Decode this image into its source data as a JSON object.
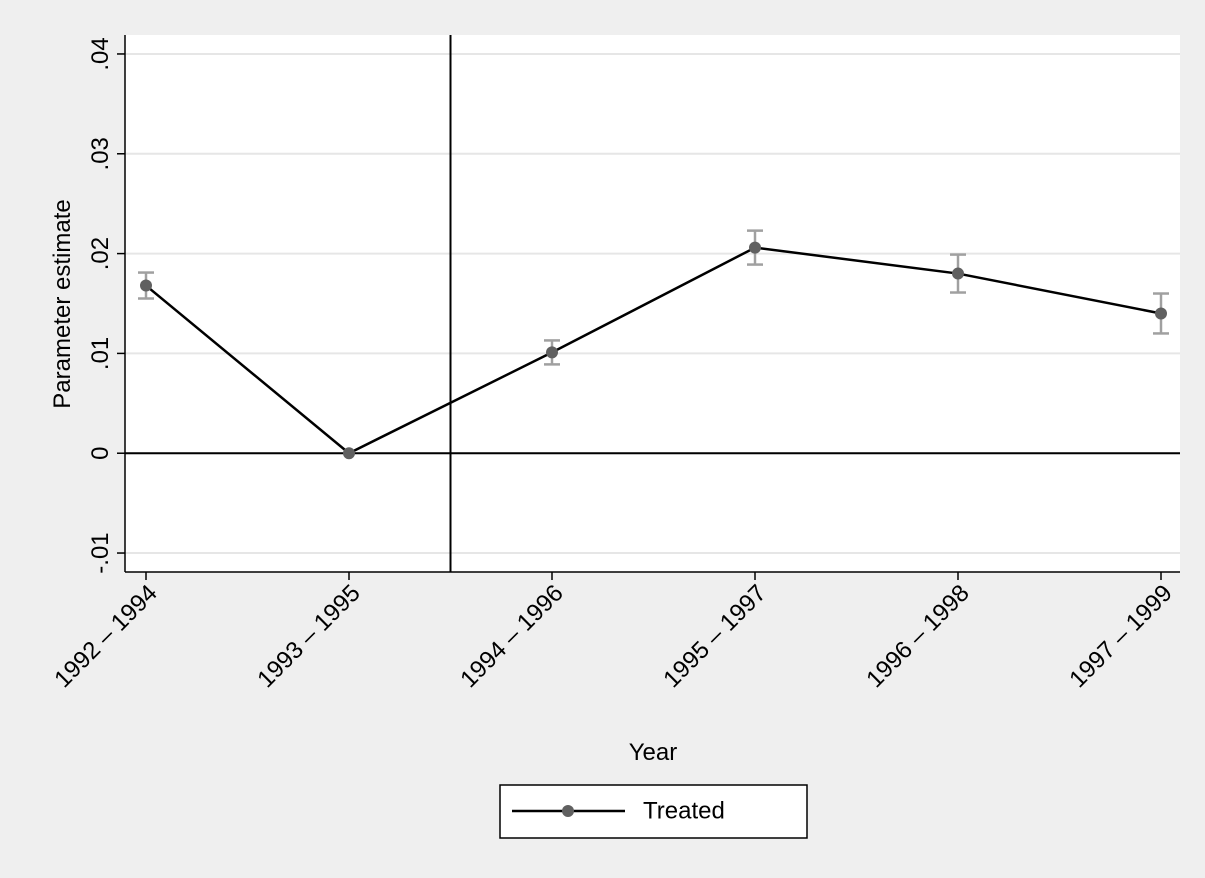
{
  "chart_data": {
    "type": "line",
    "x_label": "Year",
    "y_label": "Parameter estimate",
    "categories": [
      "1992 – 1994",
      "1993 – 1995",
      "1994 – 1996",
      "1995 – 1997",
      "1996 – 1998",
      "1997 – 1999"
    ],
    "series": [
      {
        "name": "Treated",
        "color": "#000000",
        "marker_color": "#606060",
        "error_color": "#a0a0a0",
        "values": [
          0.0168,
          0,
          0.0101,
          0.0206,
          0.018,
          0.014
        ],
        "errors": [
          0.0013,
          0,
          0.0012,
          0.0017,
          0.0019,
          0.002
        ]
      }
    ],
    "ylim": [
      -0.0119,
      0.0419
    ],
    "yticks": [
      {
        "value": -0.01,
        "label": "-.01"
      },
      0,
      {
        "value": 0.01,
        "label": ".01"
      },
      {
        "value": 0.02,
        "label": ".02"
      },
      {
        "value": 0.03,
        "label": ".03"
      },
      {
        "value": 0.04,
        "label": ".04"
      }
    ],
    "grid": true,
    "yline": 0,
    "xline": 1.5,
    "legend": "bottom"
  }
}
